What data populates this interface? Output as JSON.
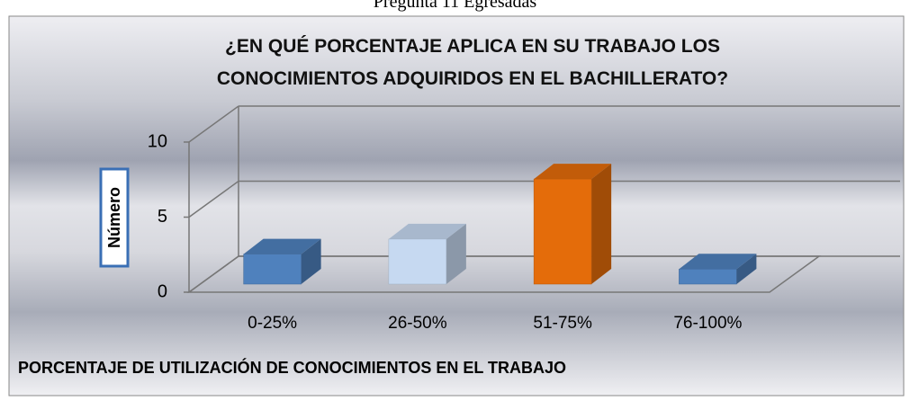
{
  "caption": "Pregunta 11 Egresadas",
  "chart_data": {
    "type": "bar3d",
    "title": "¿EN QUÉ PORCENTAJE APLICA EN SU TRABAJO LOS CONOCIMIENTOS ADQUIRIDOS EN EL BACHILLERATO?",
    "y_label": "Número",
    "x_label": "PORCENTAJE DE UTILIZACIÓN DE CONOCIMIENTOS EN EL TRABAJO",
    "categories": [
      "0-25%",
      "26-50%",
      "51-75%",
      "76-100%"
    ],
    "values": [
      2,
      3,
      7,
      1
    ],
    "colors": [
      "#4f81bd",
      "#c6d9f1",
      "#e46c0a",
      "#4f81bd"
    ],
    "ylim": [
      0,
      10
    ],
    "yticks": [
      0,
      5,
      10
    ],
    "grid": true
  }
}
